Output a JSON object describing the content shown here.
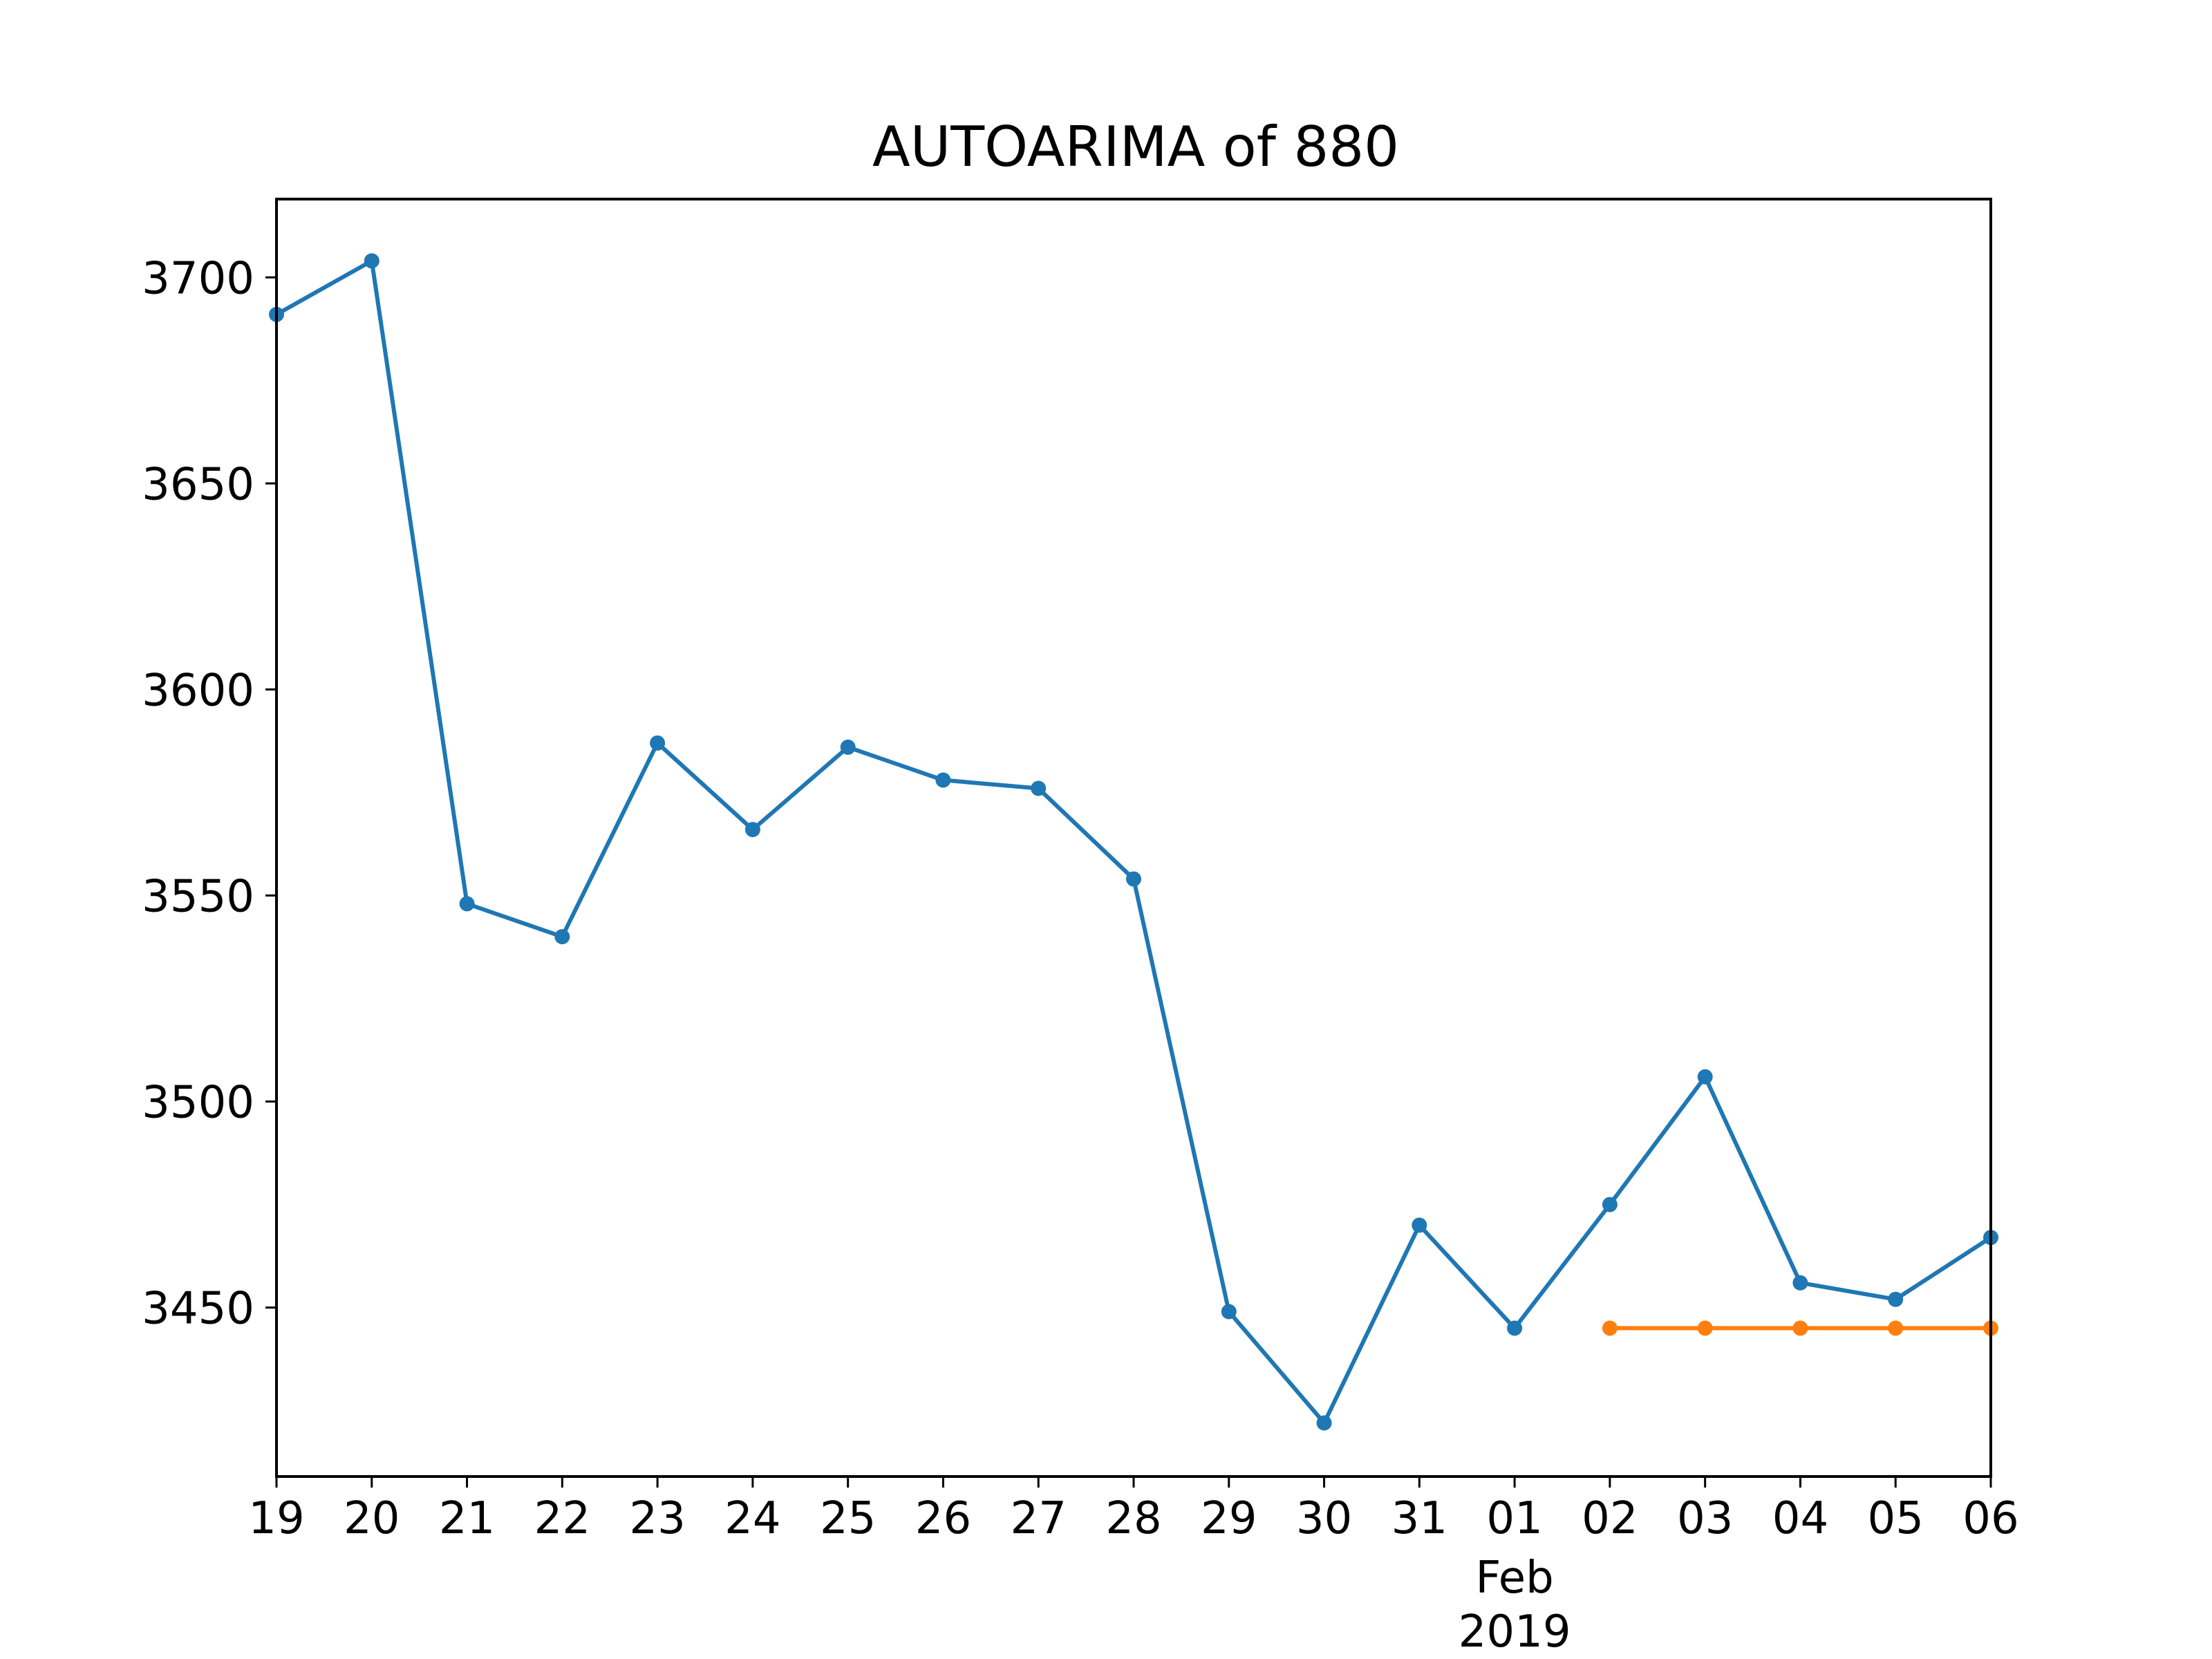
{
  "chart_data": {
    "type": "line",
    "title": "AUTOARIMA of 880",
    "xlabel": "",
    "ylabel": "",
    "x": [
      "2019-01-19",
      "2019-01-20",
      "2019-01-21",
      "2019-01-22",
      "2019-01-23",
      "2019-01-24",
      "2019-01-25",
      "2019-01-26",
      "2019-01-27",
      "2019-01-28",
      "2019-01-29",
      "2019-01-30",
      "2019-01-31",
      "2019-02-01",
      "2019-02-02",
      "2019-02-03",
      "2019-02-04",
      "2019-02-05",
      "2019-02-06"
    ],
    "x_tick_labels": [
      "19",
      "20",
      "21",
      "22",
      "23",
      "24",
      "25",
      "26",
      "27",
      "28",
      "29",
      "30",
      "31",
      "01",
      "02",
      "03",
      "04",
      "05",
      "06"
    ],
    "x_secondary_labels": {
      "month": "Feb",
      "year": "2019",
      "under_tick": "01"
    },
    "xlim": [
      "2019-01-19",
      "2019-02-06"
    ],
    "ylim": [
      3409,
      3719
    ],
    "y_ticks": [
      3450,
      3500,
      3550,
      3600,
      3650,
      3700
    ],
    "grid": false,
    "series": [
      {
        "color": "#1f77b4",
        "marker": "circle",
        "x": [
          "2019-01-19",
          "2019-01-20",
          "2019-01-21",
          "2019-01-22",
          "2019-01-23",
          "2019-01-24",
          "2019-01-25",
          "2019-01-26",
          "2019-01-27",
          "2019-01-28",
          "2019-01-29",
          "2019-01-30",
          "2019-01-31",
          "2019-02-01",
          "2019-02-02",
          "2019-02-03",
          "2019-02-04",
          "2019-02-05",
          "2019-02-06"
        ],
        "values": [
          3691,
          3704,
          3548,
          3540,
          3587,
          3566,
          3586,
          3578,
          3576,
          3554,
          3449,
          3422,
          3470,
          3445,
          3475,
          3506,
          3456,
          3452,
          3467
        ]
      },
      {
        "color": "#ff7f0e",
        "marker": "circle",
        "x": [
          "2019-02-02",
          "2019-02-03",
          "2019-02-04",
          "2019-02-05",
          "2019-02-06"
        ],
        "values": [
          3445,
          3445,
          3445,
          3445,
          3445
        ]
      }
    ]
  }
}
